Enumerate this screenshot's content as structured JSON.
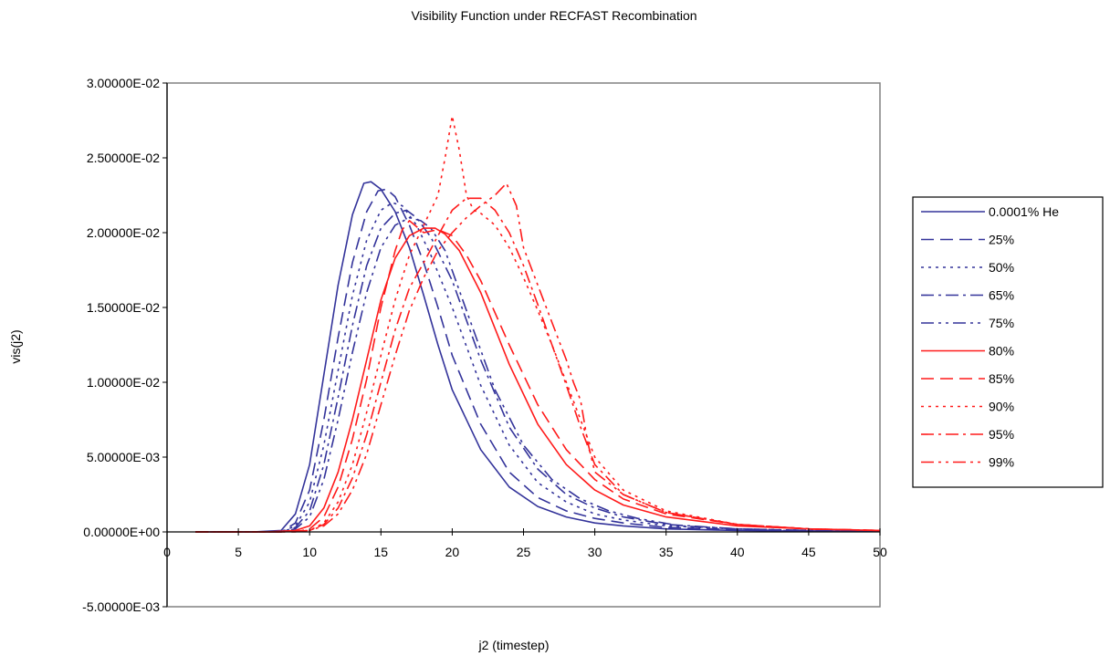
{
  "chart_data": {
    "type": "line",
    "title": "Visibility Function under RECFAST Recombination",
    "xlabel": "j2 (timestep)",
    "ylabel": "vis(j2)",
    "xlim": [
      0,
      50
    ],
    "ylim": [
      -0.005,
      0.03
    ],
    "x_ticks": [
      0,
      5,
      10,
      15,
      20,
      25,
      30,
      35,
      40,
      45,
      50
    ],
    "x_tick_labels": [
      "0",
      "5",
      "10",
      "15",
      "20",
      "25",
      "30",
      "35",
      "40",
      "45",
      "50"
    ],
    "y_ticks": [
      -0.005,
      0,
      0.005,
      0.01,
      0.015,
      0.02,
      0.025,
      0.03
    ],
    "y_tick_labels": [
      "-5.00000E-03",
      "0.00000E+00",
      "5.00000E-03",
      "1.00000E-02",
      "1.50000E-02",
      "2.00000E-02",
      "2.50000E-02",
      "3.00000E-02"
    ],
    "grid": false,
    "legend_position": "right",
    "series": [
      {
        "name": "0.0001% He",
        "color": "#33339a",
        "dash": "solid",
        "x": [
          2,
          6,
          8,
          9,
          10,
          11,
          12,
          13,
          13.8,
          14.3,
          15,
          16,
          17,
          18,
          19,
          20,
          22,
          24,
          26,
          28,
          30,
          32,
          35,
          40,
          45,
          50
        ],
        "y": [
          0.0,
          0.0,
          0.0001,
          0.0012,
          0.0045,
          0.0105,
          0.0165,
          0.0212,
          0.0233,
          0.0234,
          0.0229,
          0.0214,
          0.019,
          0.0158,
          0.0125,
          0.0095,
          0.0055,
          0.003,
          0.0017,
          0.001,
          0.0006,
          0.0004,
          0.0002,
          0.0001,
          5e-05,
          3e-05
        ]
      },
      {
        "name": "25%",
        "color": "#33339a",
        "dash": "14,7",
        "x": [
          2,
          6,
          8,
          9,
          10,
          11,
          12,
          13,
          14,
          14.8,
          15.4,
          16,
          17,
          18,
          19,
          20,
          22,
          24,
          26,
          28,
          30,
          32,
          35,
          40,
          45,
          50
        ],
        "y": [
          0.0,
          0.0,
          0.0,
          0.0006,
          0.0028,
          0.0075,
          0.013,
          0.018,
          0.0214,
          0.0228,
          0.0229,
          0.0224,
          0.0205,
          0.018,
          0.015,
          0.0118,
          0.0072,
          0.004,
          0.0023,
          0.0014,
          0.0009,
          0.0006,
          0.0003,
          0.00015,
          7e-05,
          4e-05
        ]
      },
      {
        "name": "50%",
        "color": "#33339a",
        "dash": "3,5",
        "x": [
          2,
          6,
          8,
          9,
          10,
          11,
          12,
          13,
          14,
          15,
          15.8,
          16.5,
          17.5,
          18.5,
          20,
          22,
          24,
          26,
          28,
          30,
          32,
          35,
          40,
          45,
          50
        ],
        "y": [
          0.0,
          0.0,
          0.0,
          0.0004,
          0.002,
          0.0058,
          0.0108,
          0.0158,
          0.0195,
          0.0215,
          0.022,
          0.0218,
          0.0205,
          0.0185,
          0.015,
          0.0098,
          0.0058,
          0.0033,
          0.002,
          0.0012,
          0.0008,
          0.0004,
          0.0002,
          0.0001,
          5e-05
        ]
      },
      {
        "name": "65%",
        "color": "#33339a",
        "dash": "14,5,3,5",
        "x": [
          2,
          6,
          8,
          9,
          10,
          11,
          12,
          13,
          14,
          15,
          16,
          16.8,
          17.5,
          18.5,
          20,
          22,
          24,
          26,
          28,
          30,
          32,
          35,
          40,
          45,
          50
        ],
        "y": [
          0.0,
          0.0,
          0.0,
          0.0003,
          0.0014,
          0.0045,
          0.009,
          0.0138,
          0.0178,
          0.0203,
          0.0213,
          0.0215,
          0.021,
          0.0197,
          0.0168,
          0.0115,
          0.007,
          0.0042,
          0.0025,
          0.0016,
          0.001,
          0.0005,
          0.0002,
          0.0001,
          5e-05
        ]
      },
      {
        "name": "75%",
        "color": "#33339a",
        "dash": "14,5,3,5,3,5",
        "x": [
          2,
          6,
          8,
          9,
          10,
          11,
          12,
          13,
          14,
          15,
          16,
          17,
          17.8,
          18.5,
          19.5,
          21,
          23,
          25,
          27,
          29,
          31,
          33,
          36,
          40,
          45,
          50
        ],
        "y": [
          0.0,
          0.0,
          0.0,
          0.0002,
          0.001,
          0.0035,
          0.0075,
          0.012,
          0.016,
          0.019,
          0.0205,
          0.021,
          0.0208,
          0.0203,
          0.0188,
          0.0148,
          0.0095,
          0.0058,
          0.0035,
          0.0022,
          0.0014,
          0.0009,
          0.0004,
          0.0002,
          0.0001,
          5e-05
        ]
      },
      {
        "name": "80%",
        "color": "#ff1a1a",
        "dash": "solid",
        "x": [
          2,
          7,
          9,
          10,
          11,
          12,
          13,
          14,
          15,
          16,
          17,
          18,
          18.8,
          19.5,
          20.5,
          22,
          24,
          26,
          28,
          30,
          32,
          35,
          40,
          45,
          50
        ],
        "y": [
          0.0,
          0.0,
          0.0001,
          0.0004,
          0.0016,
          0.004,
          0.0075,
          0.0115,
          0.0155,
          0.0183,
          0.0198,
          0.0203,
          0.0203,
          0.0199,
          0.0188,
          0.016,
          0.0112,
          0.0072,
          0.0045,
          0.0028,
          0.0018,
          0.001,
          0.0004,
          0.0002,
          0.0001
        ]
      },
      {
        "name": "85%",
        "color": "#ff1a1a",
        "dash": "14,7",
        "x": [
          2,
          7,
          9,
          10,
          11,
          12,
          13,
          14,
          15,
          16,
          16.5,
          17,
          17.5,
          18,
          19,
          20,
          21,
          22,
          24,
          26,
          28,
          30,
          32,
          35,
          40,
          45,
          50
        ],
        "y": [
          0.0,
          0.0,
          0.0,
          0.0002,
          0.001,
          0.003,
          0.0062,
          0.0102,
          0.015,
          0.0188,
          0.0202,
          0.0208,
          0.0204,
          0.02,
          0.0202,
          0.0198,
          0.0185,
          0.0168,
          0.0125,
          0.0085,
          0.0055,
          0.0035,
          0.0022,
          0.0012,
          0.0005,
          0.0002,
          0.0001
        ]
      },
      {
        "name": "90%",
        "color": "#ff1a1a",
        "dash": "3,5",
        "x": [
          2,
          8,
          10,
          11,
          12,
          13,
          14,
          15,
          16,
          17,
          18,
          19,
          19.5,
          20,
          20.5,
          21,
          21.5,
          22,
          23,
          24,
          25,
          26,
          27,
          28,
          29,
          30,
          32,
          35,
          40,
          45,
          50
        ],
        "y": [
          0.0,
          0.0,
          0.0001,
          0.0006,
          0.002,
          0.0045,
          0.008,
          0.0118,
          0.0155,
          0.0185,
          0.0205,
          0.0225,
          0.025,
          0.0278,
          0.0255,
          0.0225,
          0.0215,
          0.0213,
          0.0205,
          0.019,
          0.017,
          0.0148,
          0.0125,
          0.01,
          0.0075,
          0.005,
          0.0028,
          0.0014,
          0.0005,
          0.0002,
          0.0001
        ]
      },
      {
        "name": "95%",
        "color": "#ff1a1a",
        "dash": "14,5,3,5",
        "x": [
          2,
          8,
          10,
          11,
          12,
          13,
          14,
          15,
          16,
          17,
          18,
          19,
          20,
          21,
          22,
          23,
          24,
          25,
          26,
          27,
          28,
          29,
          30,
          32,
          35,
          40,
          45,
          50
        ],
        "y": [
          0.0,
          0.0,
          0.0001,
          0.0005,
          0.0016,
          0.0036,
          0.0065,
          0.01,
          0.0135,
          0.0163,
          0.018,
          0.0198,
          0.0215,
          0.0223,
          0.0223,
          0.0215,
          0.02,
          0.0178,
          0.0152,
          0.0125,
          0.0098,
          0.007,
          0.0045,
          0.0025,
          0.0013,
          0.0005,
          0.0002,
          0.0001
        ]
      },
      {
        "name": "99%",
        "color": "#ff1a1a",
        "dash": "14,5,3,5,3,5",
        "x": [
          2,
          8,
          10,
          11,
          12,
          13,
          14,
          15,
          16,
          17,
          18,
          19,
          20,
          21,
          22,
          23,
          23.8,
          24.5,
          25,
          26,
          27,
          28,
          28.5,
          29,
          29.5,
          30,
          32,
          35,
          40,
          45,
          50
        ],
        "y": [
          0.0,
          0.0,
          0.0001,
          0.0004,
          0.0012,
          0.0028,
          0.0052,
          0.0085,
          0.0118,
          0.0148,
          0.017,
          0.0188,
          0.02,
          0.021,
          0.0218,
          0.0225,
          0.0233,
          0.0218,
          0.019,
          0.0165,
          0.014,
          0.0115,
          0.01,
          0.0088,
          0.006,
          0.004,
          0.0025,
          0.0013,
          0.0005,
          0.0002,
          0.0001
        ]
      }
    ]
  }
}
